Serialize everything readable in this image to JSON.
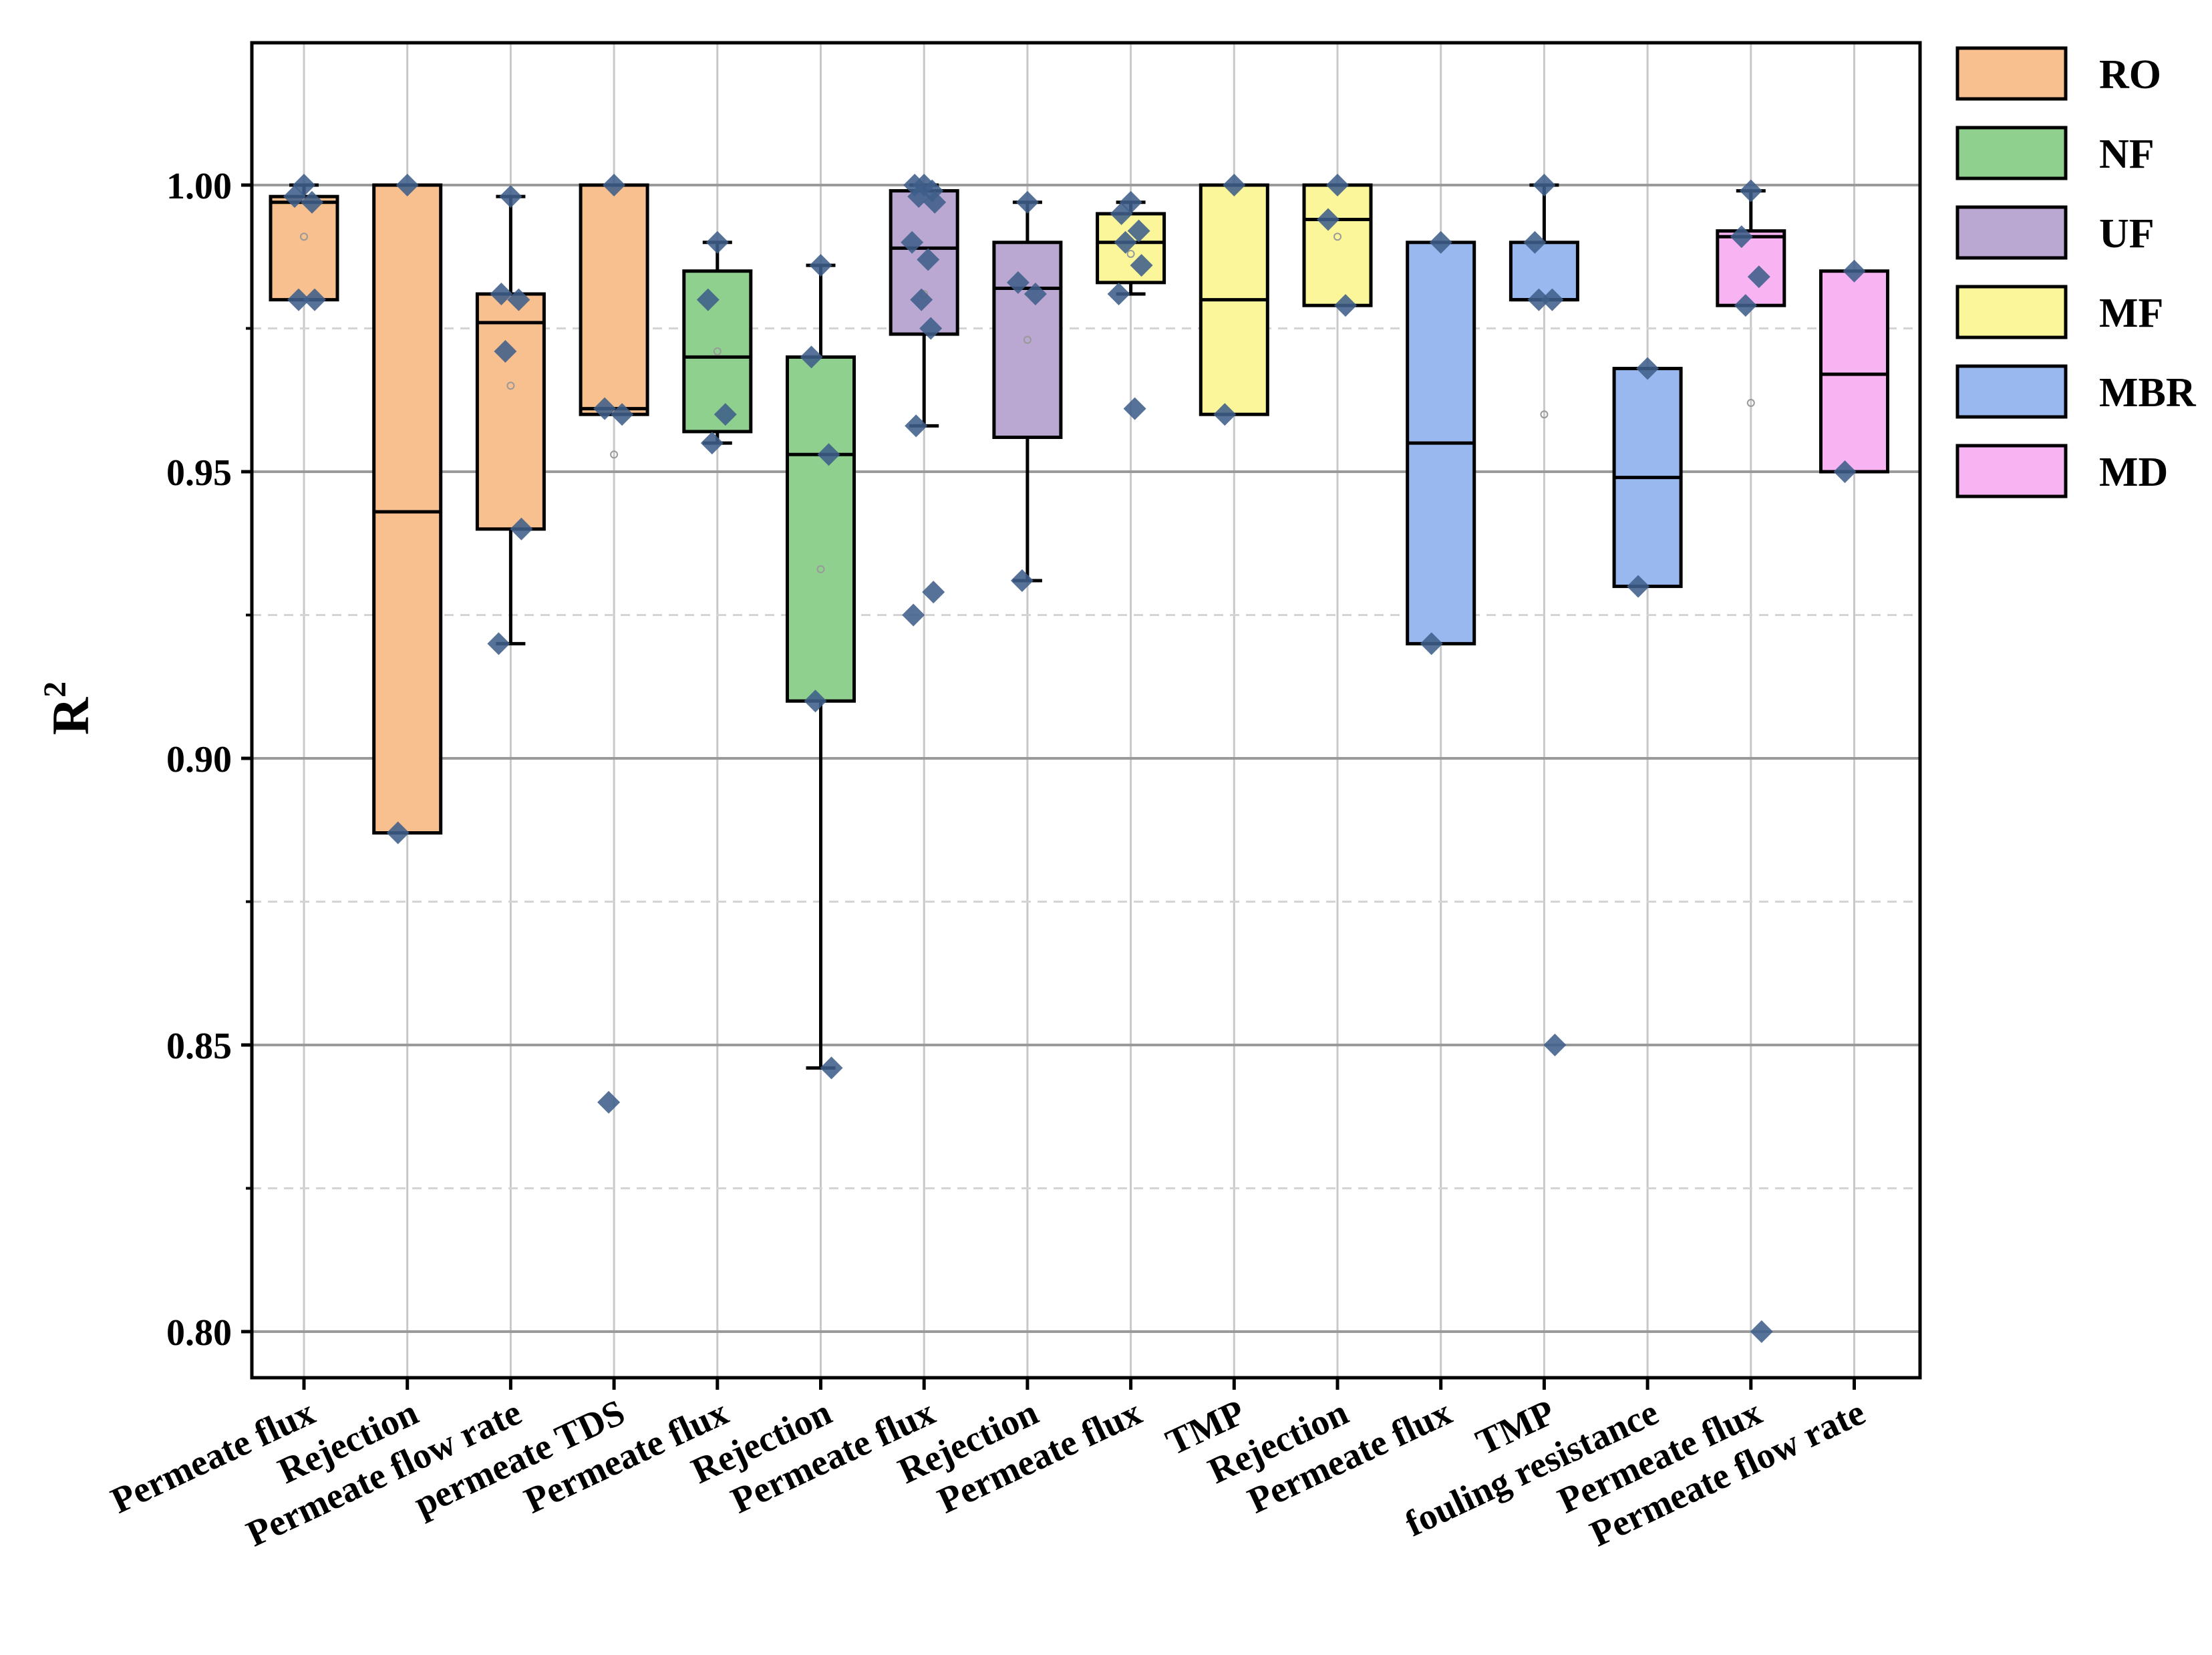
{
  "chart_data": {
    "type": "box",
    "title": "",
    "ylabel": "R",
    "ylabel_sup": "2",
    "xlabel": "",
    "ylim": [
      0.79,
      1.025
    ],
    "yticks": [
      0.8,
      0.85,
      0.9,
      0.95,
      1.0
    ],
    "ytick_labels": [
      "0.80",
      "0.85",
      "0.90",
      "0.95",
      "1.00"
    ],
    "grid": true,
    "legend_position": "right",
    "legend": [
      {
        "name": "RO",
        "color": "#F8C08F"
      },
      {
        "name": "NF",
        "color": "#8FD08F"
      },
      {
        "name": "UF",
        "color": "#BBA8D2"
      },
      {
        "name": "MF",
        "color": "#FBF69A"
      },
      {
        "name": "MBR",
        "color": "#9AB8F0"
      },
      {
        "name": "MD",
        "color": "#F7B3F2"
      }
    ],
    "categories": [
      "Permeate flux",
      "Rejection",
      "Permeate flow rate",
      "permeate TDS",
      "Permeate flux",
      "Rejection",
      "Permeate flux",
      "Rejection",
      "Permeate flux",
      "TMP",
      "Rejection",
      "Permeate flux",
      "TMP",
      "fouling resistance",
      "Permeate flux",
      "Permeate flow rate"
    ],
    "boxes": [
      {
        "group": "RO",
        "q1": 0.98,
        "median": 0.997,
        "q3": 0.998,
        "whisker_low": 0.98,
        "whisker_high": 1.0,
        "mean": 0.991,
        "points": [
          1.0,
          0.998,
          0.997,
          0.98,
          0.98
        ]
      },
      {
        "group": "RO",
        "q1": 0.887,
        "median": 0.943,
        "q3": 1.0,
        "whisker_low": 0.887,
        "whisker_high": 1.0,
        "mean": null,
        "points": [
          1.0,
          0.887
        ]
      },
      {
        "group": "RO",
        "q1": 0.94,
        "median": 0.976,
        "q3": 0.981,
        "whisker_low": 0.92,
        "whisker_high": 0.998,
        "mean": 0.965,
        "points": [
          0.998,
          0.981,
          0.98,
          0.971,
          0.94,
          0.92
        ]
      },
      {
        "group": "RO",
        "q1": 0.96,
        "median": 0.961,
        "q3": 1.0,
        "whisker_low": 0.96,
        "whisker_high": 1.0,
        "mean": 0.953,
        "points": [
          1.0,
          0.961,
          0.96,
          0.84
        ]
      },
      {
        "group": "NF",
        "q1": 0.957,
        "median": 0.97,
        "q3": 0.985,
        "whisker_low": 0.955,
        "whisker_high": 0.99,
        "mean": 0.971,
        "points": [
          0.99,
          0.98,
          0.96,
          0.955
        ]
      },
      {
        "group": "NF",
        "q1": 0.91,
        "median": 0.953,
        "q3": 0.97,
        "whisker_low": 0.846,
        "whisker_high": 0.986,
        "mean": 0.933,
        "points": [
          0.986,
          0.97,
          0.953,
          0.91,
          0.846
        ]
      },
      {
        "group": "UF",
        "q1": 0.974,
        "median": 0.989,
        "q3": 0.999,
        "whisker_low": 0.958,
        "whisker_high": 1.0,
        "mean": 0.981,
        "points": [
          1.0,
          1.0,
          0.999,
          0.998,
          0.997,
          0.99,
          0.987,
          0.98,
          0.975,
          0.958,
          0.929,
          0.925
        ]
      },
      {
        "group": "UF",
        "q1": 0.956,
        "median": 0.982,
        "q3": 0.99,
        "whisker_low": 0.931,
        "whisker_high": 0.997,
        "mean": 0.973,
        "points": [
          0.997,
          0.983,
          0.981,
          0.931
        ]
      },
      {
        "group": "MF",
        "q1": 0.983,
        "median": 0.99,
        "q3": 0.995,
        "whisker_low": 0.981,
        "whisker_high": 0.997,
        "mean": 0.988,
        "points": [
          0.997,
          0.995,
          0.992,
          0.99,
          0.986,
          0.981,
          0.961
        ]
      },
      {
        "group": "MF",
        "q1": 0.96,
        "median": 0.98,
        "q3": 1.0,
        "whisker_low": 0.96,
        "whisker_high": 1.0,
        "mean": null,
        "points": [
          1.0,
          0.96
        ]
      },
      {
        "group": "MF",
        "q1": 0.979,
        "median": 0.994,
        "q3": 1.0,
        "whisker_low": 0.979,
        "whisker_high": 1.0,
        "mean": 0.991,
        "points": [
          1.0,
          0.994,
          0.979
        ]
      },
      {
        "group": "MBR",
        "q1": 0.92,
        "median": 0.955,
        "q3": 0.99,
        "whisker_low": 0.92,
        "whisker_high": 0.99,
        "mean": null,
        "points": [
          0.99,
          0.92
        ]
      },
      {
        "group": "MBR",
        "q1": 0.98,
        "median": 0.98,
        "q3": 0.99,
        "whisker_low": 0.98,
        "whisker_high": 1.0,
        "mean": 0.96,
        "points": [
          1.0,
          0.99,
          0.98,
          0.98,
          0.85
        ]
      },
      {
        "group": "MBR",
        "q1": 0.93,
        "median": 0.949,
        "q3": 0.968,
        "whisker_low": 0.93,
        "whisker_high": 0.968,
        "mean": null,
        "points": [
          0.968,
          0.93
        ]
      },
      {
        "group": "MD",
        "q1": 0.979,
        "median": 0.991,
        "q3": 0.992,
        "whisker_low": 0.979,
        "whisker_high": 0.999,
        "mean": 0.962,
        "points": [
          0.999,
          0.991,
          0.984,
          0.979,
          0.8
        ]
      },
      {
        "group": "MD",
        "q1": 0.95,
        "median": 0.967,
        "q3": 0.985,
        "whisker_low": 0.95,
        "whisker_high": 0.985,
        "mean": null,
        "points": [
          0.985,
          0.95
        ]
      }
    ]
  }
}
